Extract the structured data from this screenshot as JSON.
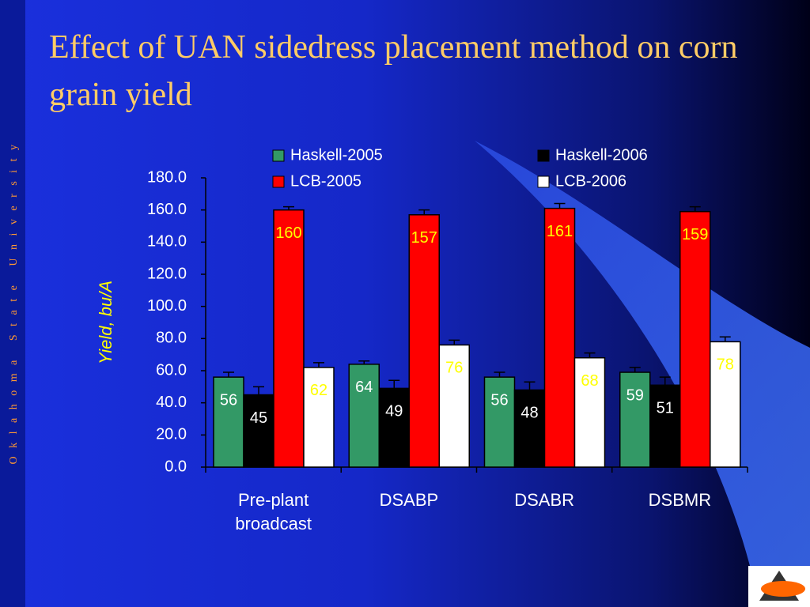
{
  "sidebar": "Oklahoma State University",
  "chart_data": {
    "type": "bar",
    "title": "Effect of UAN sidedress placement method on corn grain yield",
    "y_label": "Yield, bu/A",
    "categories": [
      "Pre-plant broadcast",
      "DSABP",
      "DSABR",
      "DSBMR"
    ],
    "series": [
      {
        "name": "Haskell-2005",
        "color": "#339966",
        "values": [
          56,
          64,
          56,
          59
        ],
        "errors": [
          3,
          2,
          3,
          3
        ]
      },
      {
        "name": "Haskell-2006",
        "color": "#000000",
        "values": [
          45,
          49,
          48,
          51
        ],
        "errors": [
          5,
          5,
          5,
          5
        ]
      },
      {
        "name": "LCB-2005",
        "color": "#ff0000",
        "values": [
          160,
          157,
          161,
          159
        ],
        "errors": [
          2,
          3,
          3,
          3
        ]
      },
      {
        "name": "LCB-2006",
        "color": "#ffffff",
        "values": [
          62,
          76,
          68,
          78
        ],
        "errors": [
          3,
          3,
          3,
          3
        ]
      }
    ],
    "ylim": [
      0,
      180
    ],
    "yticks": [
      {
        "value": 0,
        "label": "0.0"
      },
      {
        "value": 20,
        "label": "20.0"
      },
      {
        "value": 40,
        "label": "40.0"
      },
      {
        "value": 60,
        "label": "60.0"
      },
      {
        "value": 80,
        "label": "80.0"
      },
      {
        "value": 100,
        "label": "100.0"
      },
      {
        "value": 120,
        "label": "120.0"
      },
      {
        "value": 140,
        "label": "140.0"
      },
      {
        "value": 160,
        "label": "160.0"
      },
      {
        "value": 180,
        "label": "180.0"
      }
    ],
    "grid": false
  }
}
